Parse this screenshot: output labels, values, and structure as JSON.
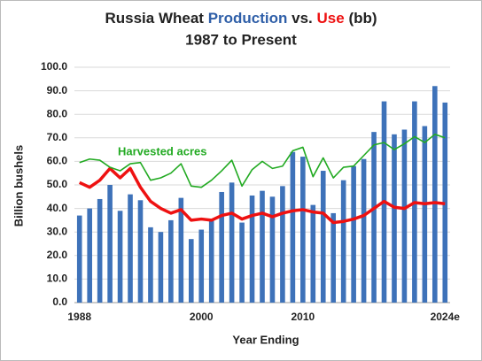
{
  "chart_data": {
    "type": "bar",
    "title_parts": [
      "Russia Wheat",
      "vs.",
      "(bb)"
    ],
    "subtitle": "1987 to Present",
    "ylabel": "Billion bushels",
    "xlabel": "Year Ending",
    "categories": [
      "1988",
      null,
      null,
      null,
      null,
      null,
      null,
      null,
      null,
      null,
      null,
      null,
      "2000",
      null,
      null,
      null,
      null,
      null,
      null,
      null,
      null,
      null,
      "2010",
      null,
      null,
      null,
      null,
      null,
      null,
      null,
      null,
      null,
      null,
      null,
      null,
      null,
      "2024e"
    ],
    "ylim": [
      0,
      100
    ],
    "yticks": [
      {
        "value": 0,
        "label": "0.0"
      },
      {
        "value": 10,
        "label": "10.0"
      },
      {
        "value": 20,
        "label": "20.0"
      },
      {
        "value": 30,
        "label": "30.0"
      },
      {
        "value": 40,
        "label": "40.0"
      },
      {
        "value": 50,
        "label": "50.0"
      },
      {
        "value": 60,
        "label": "60.0"
      },
      {
        "value": 70,
        "label": "70.0"
      },
      {
        "value": 80,
        "label": "80.0"
      },
      {
        "value": 90,
        "label": "90.0"
      },
      {
        "value": 100,
        "label": "100.0"
      }
    ],
    "grid": true,
    "series": [
      {
        "name": "Production",
        "type": "bar",
        "color": "#3e72b9",
        "values": [
          37,
          40,
          44,
          50,
          39,
          46,
          43.5,
          32,
          30,
          35,
          44.5,
          27,
          31,
          35,
          47,
          51,
          34,
          45.5,
          47.5,
          45,
          49.5,
          64,
          62,
          41.5,
          56,
          38,
          52,
          58,
          61,
          72.5,
          85.5,
          71.5,
          73.5,
          85.5,
          75,
          92,
          85
        ]
      },
      {
        "name": "Use",
        "type": "line",
        "color": "#ee1111",
        "values": [
          51,
          49,
          52,
          57,
          53,
          57,
          49,
          43,
          40,
          38,
          39.5,
          35,
          35.5,
          35,
          37,
          38,
          35.5,
          37,
          38,
          36.5,
          38,
          39,
          39.5,
          38.5,
          38,
          34,
          34.5,
          35.5,
          37,
          40,
          43,
          40.5,
          40,
          42.5,
          42,
          42.5,
          42
        ]
      },
      {
        "name": "Harvested acres",
        "type": "line",
        "color": "#22aa22",
        "values": [
          59.5,
          61,
          60.5,
          57.5,
          56,
          59,
          59.5,
          52,
          53,
          55,
          59,
          49.5,
          49,
          52,
          56,
          60.5,
          49.5,
          56.5,
          60,
          57,
          58,
          64.5,
          66,
          53.5,
          61.5,
          53,
          57.5,
          58,
          62.5,
          67,
          68,
          65,
          67.5,
          70.5,
          68,
          71.5,
          70
        ]
      }
    ]
  }
}
